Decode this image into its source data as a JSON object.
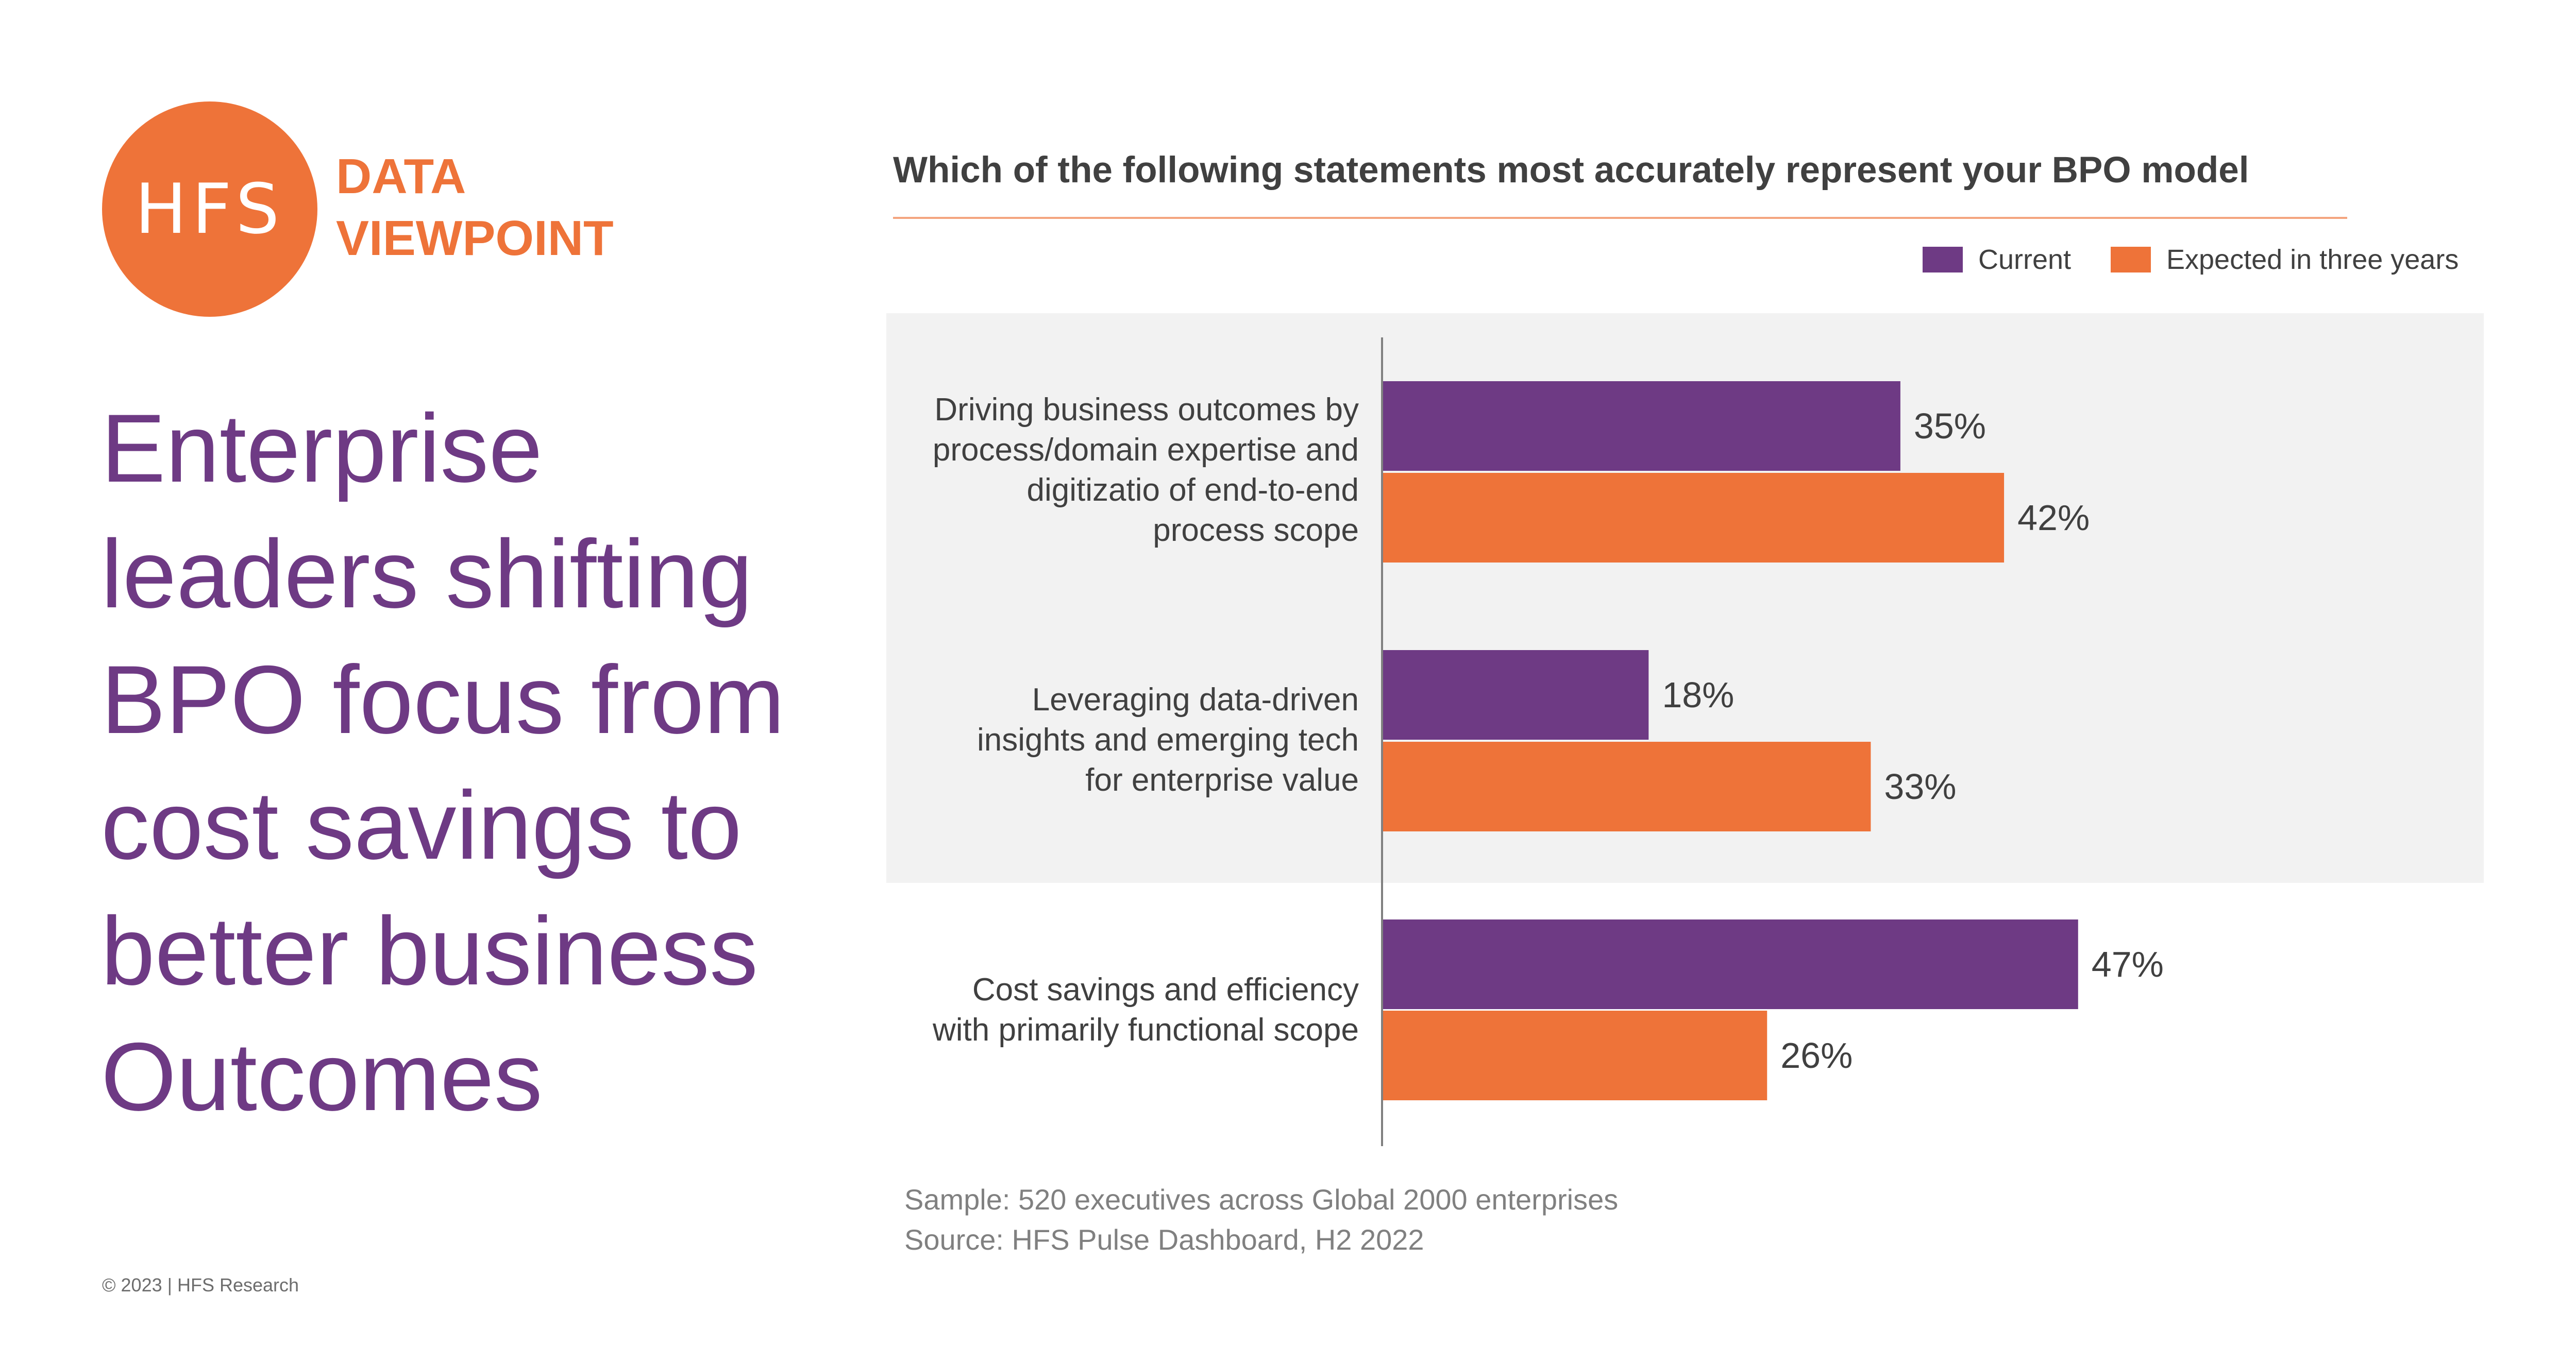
{
  "brand": {
    "logo_text": "HFS",
    "line1": "DATA",
    "line2": "VIEWPOINT"
  },
  "headline": {
    "lines": [
      "Enterprise",
      "leaders shifting",
      "BPO focus from",
      "cost savings to",
      "better business",
      "Outcomes"
    ]
  },
  "colors": {
    "current": "#6E3A84",
    "expected": "#EE7339",
    "panel": "#F2F2F2",
    "axis": "#808080"
  },
  "chart_data": {
    "type": "bar",
    "orientation": "horizontal",
    "title": "Which of the following statements most accurately represent your BPO model",
    "categories": [
      [
        "Driving business outcomes by",
        "process/domain expertise and",
        "digitizatio of end-to-end",
        "process scope"
      ],
      [
        "Leveraging data-driven",
        "insights and emerging tech",
        "for enterprise value"
      ],
      [
        "Cost savings and efficiency",
        "with primarily functional scope"
      ]
    ],
    "series": [
      {
        "name": "Current",
        "values": [
          35,
          18,
          47
        ],
        "labels": [
          "35%",
          "18%",
          "47%"
        ]
      },
      {
        "name": "Expected in three years",
        "values": [
          42,
          33,
          26
        ],
        "labels": [
          "42%",
          "33%",
          "26%"
        ]
      }
    ],
    "xlim": [
      0,
      50
    ],
    "legend_position": "top-right",
    "grid": false
  },
  "footnote": {
    "sample": "Sample: 520 executives across Global 2000 enterprises",
    "source": "Source: HFS Pulse Dashboard, H2 2022"
  },
  "copyright": "© 2023 | HFS Research"
}
